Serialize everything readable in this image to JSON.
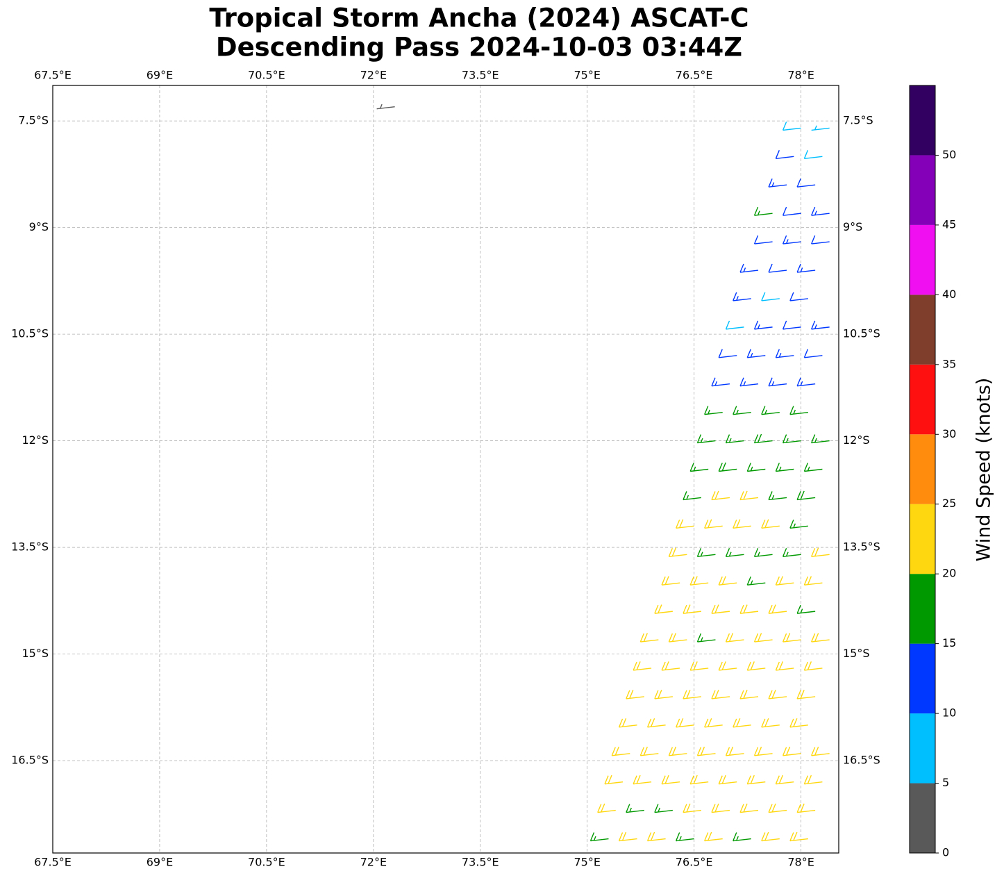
{
  "chart_data": {
    "type": "wind-barbs",
    "title": [
      "Tropical Storm Ancha (2024) ASCAT-C",
      "Descending Pass 2024-10-03 03:44Z"
    ],
    "xlim": [
      67.5,
      78.53
    ],
    "ylim": [
      -17.8,
      -7.0
    ],
    "xticks": [
      {
        "value": 67.5,
        "label": "67.5°E"
      },
      {
        "value": 69,
        "label": "69°E"
      },
      {
        "value": 70.5,
        "label": "70.5°E"
      },
      {
        "value": 72,
        "label": "72°E"
      },
      {
        "value": 73.5,
        "label": "73.5°E"
      },
      {
        "value": 75,
        "label": "75°E"
      },
      {
        "value": 76.5,
        "label": "76.5°E"
      },
      {
        "value": 78,
        "label": "78°E"
      }
    ],
    "yticks": [
      {
        "value": -7.5,
        "label": "7.5°S"
      },
      {
        "value": -9,
        "label": "9°S"
      },
      {
        "value": -10.5,
        "label": "10.5°S"
      },
      {
        "value": -12,
        "label": "12°S"
      },
      {
        "value": -13.5,
        "label": "13.5°S"
      },
      {
        "value": -15,
        "label": "15°S"
      },
      {
        "value": -16.5,
        "label": "16.5°S"
      }
    ],
    "grid": true,
    "colorbar": {
      "label": "Wind Speed (knots)",
      "bounds": [
        0,
        5,
        10,
        15,
        20,
        25,
        30,
        35,
        40,
        45,
        50,
        55
      ],
      "colors": [
        "#595959",
        "#00bfff",
        "#0038ff",
        "#009900",
        "#ffd711",
        "#ff8c0d",
        "#ff1010",
        "#7f3d2b",
        "#f00ff0",
        "#8400b8",
        "#310060"
      ],
      "ticks": [
        0,
        5,
        10,
        15,
        20,
        25,
        30,
        35,
        40,
        45,
        50
      ]
    },
    "barbs": [
      {
        "lat": -7.3,
        "lon": [
          72.3
        ],
        "speed": [
          3
        ]
      },
      {
        "lat": -7.6,
        "lon": [
          78.0,
          78.4
        ],
        "speed": [
          8,
          7
        ]
      },
      {
        "lat": -8.0,
        "lon": [
          77.9,
          78.3
        ],
        "speed": [
          12,
          8
        ]
      },
      {
        "lat": -8.4,
        "lon": [
          77.8,
          78.2
        ],
        "speed": [
          13,
          12
        ]
      },
      {
        "lat": -8.8,
        "lon": [
          77.6,
          78.0,
          78.4
        ],
        "speed": [
          17,
          12,
          13
        ]
      },
      {
        "lat": -9.2,
        "lon": [
          77.6,
          78.0,
          78.4
        ],
        "speed": [
          12,
          13,
          12
        ]
      },
      {
        "lat": -9.6,
        "lon": [
          77.4,
          77.8,
          78.2
        ],
        "speed": [
          13,
          12,
          13
        ]
      },
      {
        "lat": -10.0,
        "lon": [
          77.3,
          77.7,
          78.1
        ],
        "speed": [
          13,
          8,
          12
        ]
      },
      {
        "lat": -10.4,
        "lon": [
          77.2,
          77.6,
          78.0,
          78.4
        ],
        "speed": [
          8,
          13,
          12,
          13
        ]
      },
      {
        "lat": -10.8,
        "lon": [
          77.1,
          77.5,
          77.9,
          78.3
        ],
        "speed": [
          12,
          13,
          13,
          12
        ]
      },
      {
        "lat": -11.2,
        "lon": [
          77.0,
          77.4,
          77.8,
          78.2
        ],
        "speed": [
          13,
          14,
          13,
          13
        ]
      },
      {
        "lat": -11.6,
        "lon": [
          76.9,
          77.3,
          77.7,
          78.1
        ],
        "speed": [
          17,
          17,
          16,
          17
        ]
      },
      {
        "lat": -12.0,
        "lon": [
          76.8,
          77.2,
          77.6,
          78.0,
          78.4
        ],
        "speed": [
          17,
          17,
          18,
          17,
          16
        ]
      },
      {
        "lat": -12.4,
        "lon": [
          76.7,
          77.1,
          77.5,
          77.9,
          78.3
        ],
        "speed": [
          17,
          18,
          17,
          17,
          17
        ]
      },
      {
        "lat": -12.8,
        "lon": [
          76.6,
          77.0,
          77.4,
          77.8,
          78.2
        ],
        "speed": [
          17,
          22,
          21,
          17,
          18
        ]
      },
      {
        "lat": -13.2,
        "lon": [
          76.5,
          76.9,
          77.3,
          77.7,
          78.1
        ],
        "speed": [
          22,
          21,
          22,
          21,
          17
        ]
      },
      {
        "lat": -13.6,
        "lon": [
          76.4,
          76.8,
          77.2,
          77.6,
          78.0,
          78.4
        ],
        "speed": [
          22,
          17,
          17,
          17,
          17,
          21
        ]
      },
      {
        "lat": -14.0,
        "lon": [
          76.3,
          76.7,
          77.1,
          77.5,
          77.9,
          78.3
        ],
        "speed": [
          22,
          22,
          21,
          17,
          22,
          21
        ]
      },
      {
        "lat": -14.4,
        "lon": [
          76.2,
          76.6,
          77.0,
          77.4,
          77.8,
          78.2
        ],
        "speed": [
          22,
          22,
          22,
          21,
          22,
          17
        ]
      },
      {
        "lat": -14.8,
        "lon": [
          76.0,
          76.4,
          76.8,
          77.2,
          77.6,
          78.0,
          78.4
        ],
        "speed": [
          22,
          21,
          17,
          22,
          22,
          21,
          22
        ]
      },
      {
        "lat": -15.2,
        "lon": [
          75.9,
          76.3,
          76.7,
          77.1,
          77.5,
          77.9,
          78.3
        ],
        "speed": [
          22,
          22,
          22,
          22,
          21,
          22,
          22
        ]
      },
      {
        "lat": -15.6,
        "lon": [
          75.8,
          76.2,
          76.6,
          77.0,
          77.4,
          77.8,
          78.2
        ],
        "speed": [
          21,
          22,
          22,
          22,
          22,
          22,
          21
        ]
      },
      {
        "lat": -16.0,
        "lon": [
          75.7,
          76.1,
          76.5,
          76.9,
          77.3,
          77.7,
          78.1
        ],
        "speed": [
          22,
          22,
          21,
          22,
          22,
          22,
          22
        ]
      },
      {
        "lat": -16.4,
        "lon": [
          75.6,
          76.0,
          76.4,
          76.8,
          77.2,
          77.6,
          78.0,
          78.4
        ],
        "speed": [
          22,
          22,
          22,
          21,
          22,
          22,
          22,
          22
        ]
      },
      {
        "lat": -16.8,
        "lon": [
          75.5,
          75.9,
          76.3,
          76.7,
          77.1,
          77.5,
          77.9,
          78.3
        ],
        "speed": [
          22,
          21,
          22,
          22,
          22,
          22,
          21,
          22
        ]
      },
      {
        "lat": -17.2,
        "lon": [
          75.4,
          75.8,
          76.2,
          76.6,
          77.0,
          77.4,
          77.8,
          78.2
        ],
        "speed": [
          22,
          17,
          17,
          22,
          22,
          22,
          22,
          22
        ]
      },
      {
        "lat": -17.6,
        "lon": [
          75.3,
          75.7,
          76.1,
          76.5,
          76.9,
          77.3,
          77.7,
          78.1
        ],
        "speed": [
          17,
          22,
          22,
          17,
          22,
          17,
          22,
          22
        ]
      }
    ]
  }
}
